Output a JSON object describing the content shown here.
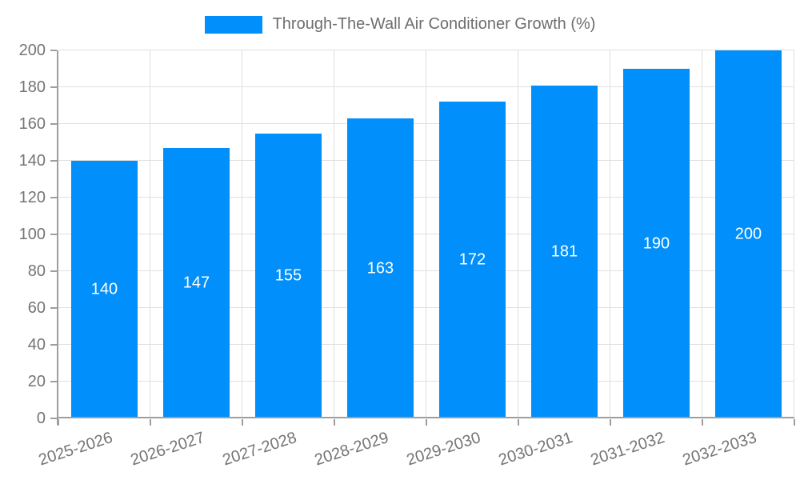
{
  "colors": {
    "bar": "#008FFB",
    "grid": "#e0e0e0",
    "axis": "#9e9e9e",
    "tick_label": "#757575",
    "legend_text": "#6e6e6e",
    "value_label": "#ffffff",
    "background": "#ffffff"
  },
  "chart_data": {
    "type": "bar",
    "title": "",
    "categories": [
      "2025-2026",
      "2026-2027",
      "2027-2028",
      "2028-2029",
      "2029-2030",
      "2030-2031",
      "2031-2032",
      "2032-2033"
    ],
    "series": [
      {
        "name": "Through-The-Wall Air Conditioner Growth (%)",
        "values": [
          140,
          147,
          155,
          163,
          172,
          181,
          190,
          200
        ]
      }
    ],
    "xlabel": "",
    "ylabel": "",
    "ylim": [
      0,
      200
    ],
    "ytick_step": 20,
    "grid": true,
    "legend_position": "top",
    "value_label_position": "inside-center",
    "x_label_rotation_deg": -18
  }
}
